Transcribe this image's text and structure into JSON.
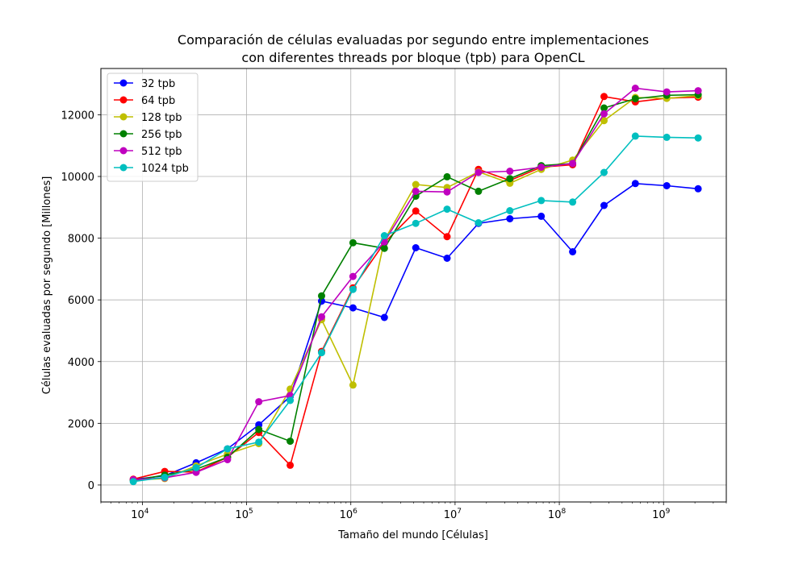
{
  "chart_data": {
    "type": "line",
    "title_lines": [
      "Comparación de células evaluadas por segundo entre implementaciones",
      "con diferentes threads por bloque (tpb) para OpenCL"
    ],
    "xlabel": "Tamaño del mundo [Células]",
    "ylabel": "Células evaluadas por segundo [Millones]",
    "x_scale": "log",
    "xlim": [
      4000,
      4000000000
    ],
    "ylim": [
      -550,
      13500
    ],
    "x_ticks": [
      {
        "value": 10000,
        "base": "10",
        "exp": "4"
      },
      {
        "value": 100000,
        "base": "10",
        "exp": "5"
      },
      {
        "value": 1000000,
        "base": "10",
        "exp": "6"
      },
      {
        "value": 10000000,
        "base": "10",
        "exp": "7"
      },
      {
        "value": 100000000,
        "base": "10",
        "exp": "8"
      },
      {
        "value": 1000000000,
        "base": "10",
        "exp": "9"
      }
    ],
    "y_ticks": [
      0,
      2000,
      4000,
      6000,
      8000,
      10000,
      12000
    ],
    "grid": true,
    "legend_position": "upper-left",
    "x": [
      8192,
      16384,
      32768,
      65536,
      131072,
      262144,
      524288,
      1048576,
      2097152,
      4194304,
      8388608,
      16777216,
      33554432,
      67108864,
      134217728,
      268435456,
      536870912,
      1073741824,
      2147483648
    ],
    "series": [
      {
        "name": "32 tpb",
        "color": "#0000ff",
        "values": [
          180,
          300,
          720,
          1170,
          1950,
          2870,
          5960,
          5740,
          5430,
          7690,
          7350,
          8480,
          8630,
          8710,
          7560,
          9060,
          9770,
          9700,
          9600
        ]
      },
      {
        "name": "64 tpb",
        "color": "#ff0000",
        "values": [
          190,
          440,
          420,
          900,
          1700,
          640,
          4330,
          6390,
          7850,
          8880,
          8050,
          10230,
          9870,
          10300,
          10380,
          12590,
          12420,
          12540,
          12570
        ]
      },
      {
        "name": "128 tpb",
        "color": "#bfbf00",
        "values": [
          160,
          210,
          620,
          1000,
          1340,
          3110,
          5360,
          3240,
          7930,
          9740,
          9640,
          10150,
          9780,
          10230,
          10530,
          11810,
          12560,
          12530,
          12620
        ]
      },
      {
        "name": "256 tpb",
        "color": "#008000",
        "values": [
          150,
          320,
          510,
          900,
          1800,
          1420,
          6130,
          7850,
          7670,
          9360,
          9990,
          9520,
          9930,
          10350,
          10420,
          12220,
          12520,
          12630,
          12650
        ]
      },
      {
        "name": "512 tpb",
        "color": "#bf00bf",
        "values": [
          170,
          230,
          410,
          820,
          2700,
          2900,
          5450,
          6760,
          7880,
          9520,
          9500,
          10130,
          10170,
          10300,
          10420,
          12030,
          12860,
          12740,
          12780
        ]
      },
      {
        "name": "1024 tpb",
        "color": "#00bfbf",
        "values": [
          110,
          250,
          560,
          1170,
          1390,
          2740,
          4290,
          6340,
          8080,
          8480,
          8940,
          8500,
          8890,
          9220,
          9170,
          10130,
          11310,
          11270,
          11250
        ]
      }
    ]
  }
}
